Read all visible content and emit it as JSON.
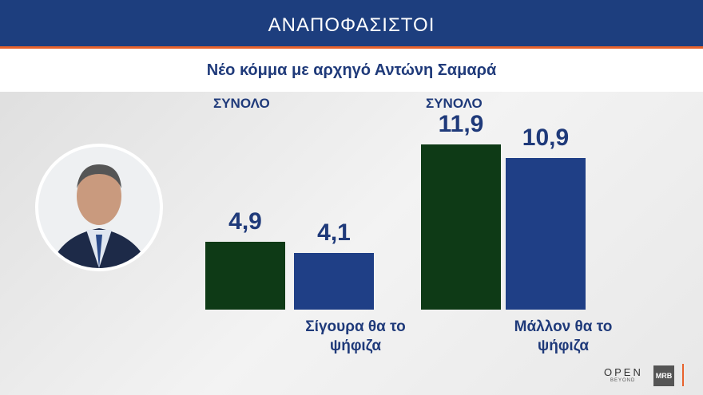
{
  "chart_data": {
    "type": "bar",
    "title": "ΑΝΑΠΟΦΑΣΙΣΤΟΙ",
    "subtitle": "Νέο κόμμα με αρχηγό Αντώνη Σαμαρά",
    "group_labels": [
      "ΣΥΝΟΛΟ",
      "ΣΥΝΟΛΟ"
    ],
    "categories": [
      "Σίγουρα θα το ψήφιζα",
      "Μάλλον θα το ψήφιζα"
    ],
    "series": [
      {
        "color": "#0e3a16",
        "values": [
          4.9,
          11.9
        ],
        "value_labels": [
          "4,9",
          "11,9"
        ]
      },
      {
        "color": "#1f3f86",
        "values": [
          4.1,
          10.9
        ],
        "value_labels": [
          "4,1",
          "10,9"
        ]
      }
    ]
  },
  "logos": {
    "open": "OPEN",
    "beyond": "BEYOND",
    "mrb": "MRB"
  }
}
